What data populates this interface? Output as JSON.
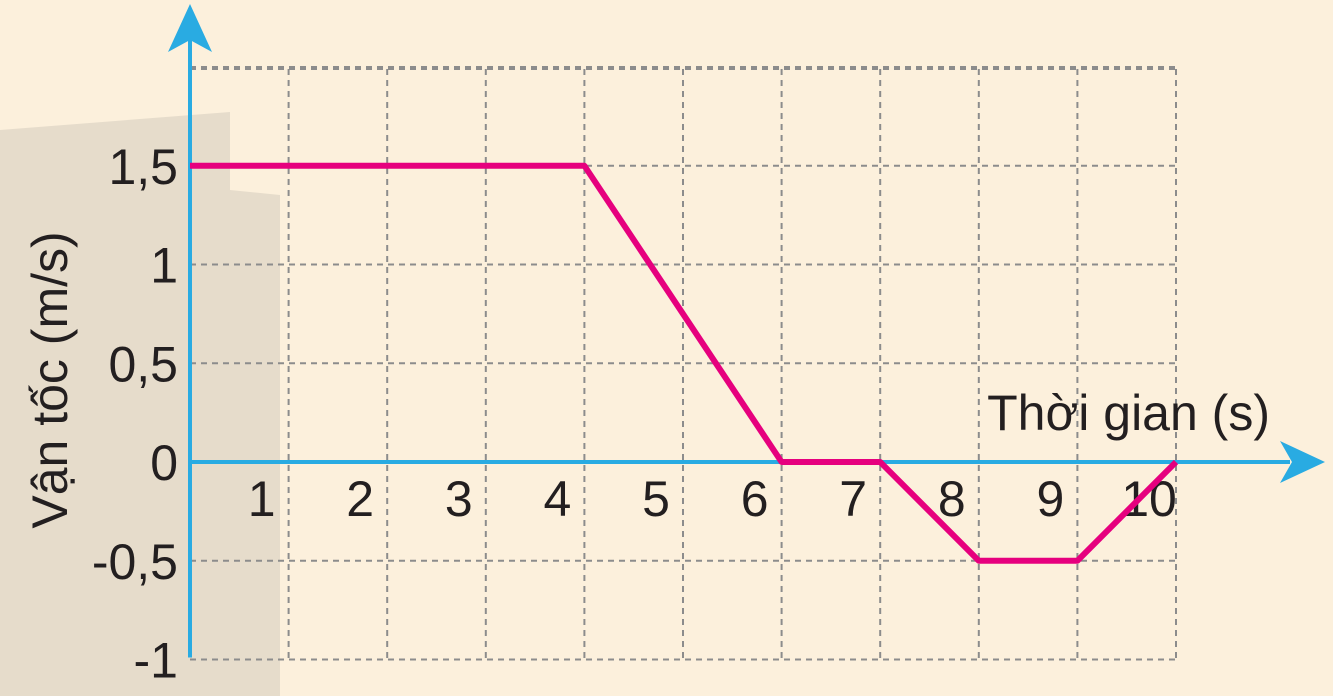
{
  "colors": {
    "background": "#fcf0dc",
    "shadow": "#e6dccb",
    "grid": "#8c8c8c",
    "axis": "#29abe2",
    "line": "#e6007e",
    "text": "#231f20"
  },
  "chart_data": {
    "type": "line",
    "title": "",
    "xlabel": "Thời gian (s)",
    "ylabel": "Vận tốc (m/s)",
    "xlim": [
      0,
      10
    ],
    "ylim": [
      -1,
      2
    ],
    "grid": true,
    "x_ticks": [
      1,
      2,
      3,
      4,
      5,
      6,
      7,
      8,
      9,
      10
    ],
    "x_tick_labels": [
      "1",
      "2",
      "3",
      "4",
      "5",
      "6",
      "7",
      "8",
      "9",
      "10"
    ],
    "y_ticks": [
      1.5,
      1,
      0.5,
      0,
      -0.5,
      -1
    ],
    "y_tick_labels": [
      "1,5",
      "1",
      "0,5",
      "0",
      "-0,5",
      "-1"
    ],
    "series": [
      {
        "x": [
          0,
          4,
          6,
          7,
          8,
          9,
          10
        ],
        "y": [
          1.5,
          1.5,
          0,
          0,
          -0.5,
          -0.5,
          0
        ]
      }
    ]
  }
}
